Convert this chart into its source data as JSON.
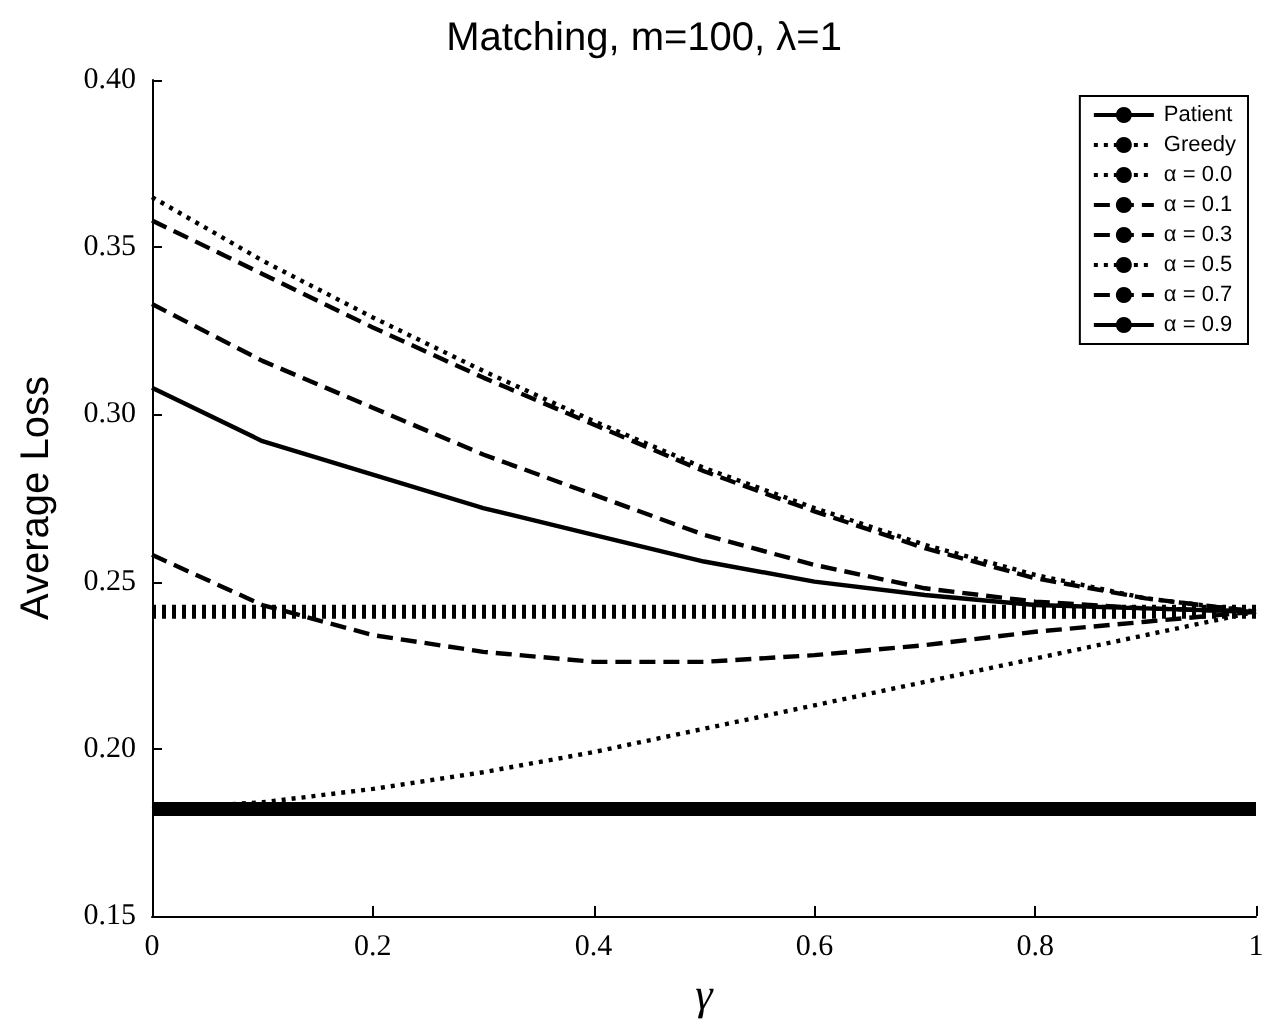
{
  "chart_data": {
    "type": "line",
    "title": "Matching, m=100, λ=1",
    "xlabel": "γ",
    "ylabel": "Average Loss",
    "x": [
      0,
      0.1,
      0.2,
      0.3,
      0.4,
      0.5,
      0.6,
      0.7,
      0.8,
      0.9,
      1
    ],
    "xlim": [
      0,
      1
    ],
    "xticks": [
      0,
      0.2,
      0.4,
      0.6,
      0.8,
      1
    ],
    "ylim": [
      0.15,
      0.4
    ],
    "yticks": [
      0.15,
      {
        "value": 0.2,
        "label": "0.20"
      },
      0.25,
      {
        "value": 0.3,
        "label": "0.30"
      },
      0.35,
      {
        "value": 0.4,
        "label": "0.40"
      }
    ],
    "grid": false,
    "legend": "top right",
    "marker": "none",
    "series": [
      {
        "name": "Patient",
        "color": "#000000",
        "line_style": "solid",
        "values": [
          0.182,
          0.182,
          0.182,
          0.182,
          0.182,
          0.182,
          0.182,
          0.182,
          0.182,
          0.182,
          0.182
        ]
      },
      {
        "name": "Greedy",
        "color": "#000000",
        "line_style": "dotted",
        "values": [
          0.241,
          0.241,
          0.241,
          0.241,
          0.241,
          0.241,
          0.241,
          0.241,
          0.241,
          0.241,
          0.241
        ]
      },
      {
        "name": "α = 0.0",
        "color": "#000000",
        "line_style": "dotted",
        "values": [
          0.182,
          0.184,
          0.188,
          0.193,
          0.199,
          0.206,
          0.213,
          0.22,
          0.227,
          0.234,
          0.241
        ]
      },
      {
        "name": "α = 0.1",
        "color": "#000000",
        "line_style": "dashed",
        "values": [
          0.258,
          0.243,
          0.234,
          0.229,
          0.226,
          0.226,
          0.228,
          0.231,
          0.235,
          0.238,
          0.241
        ]
      },
      {
        "name": "α = 0.3",
        "color": "#000000",
        "line_style": "dashed",
        "values": [
          0.333,
          0.316,
          0.302,
          0.288,
          0.276,
          0.264,
          0.255,
          0.248,
          0.244,
          0.242,
          0.241
        ]
      },
      {
        "name": "α = 0.5",
        "color": "#000000",
        "line_style": "dotted",
        "values": [
          0.365,
          0.346,
          0.329,
          0.313,
          0.298,
          0.284,
          0.272,
          0.261,
          0.252,
          0.245,
          0.241
        ]
      },
      {
        "name": "α = 0.7",
        "color": "#000000",
        "line_style": "dashed",
        "values": [
          0.358,
          0.342,
          0.326,
          0.311,
          0.297,
          0.283,
          0.271,
          0.26,
          0.251,
          0.245,
          0.241
        ]
      },
      {
        "name": "α = 0.9",
        "color": "#000000",
        "line_style": "solid",
        "values": [
          0.308,
          0.292,
          0.282,
          0.272,
          0.264,
          0.256,
          0.25,
          0.246,
          0.243,
          0.242,
          0.241
        ]
      }
    ]
  }
}
